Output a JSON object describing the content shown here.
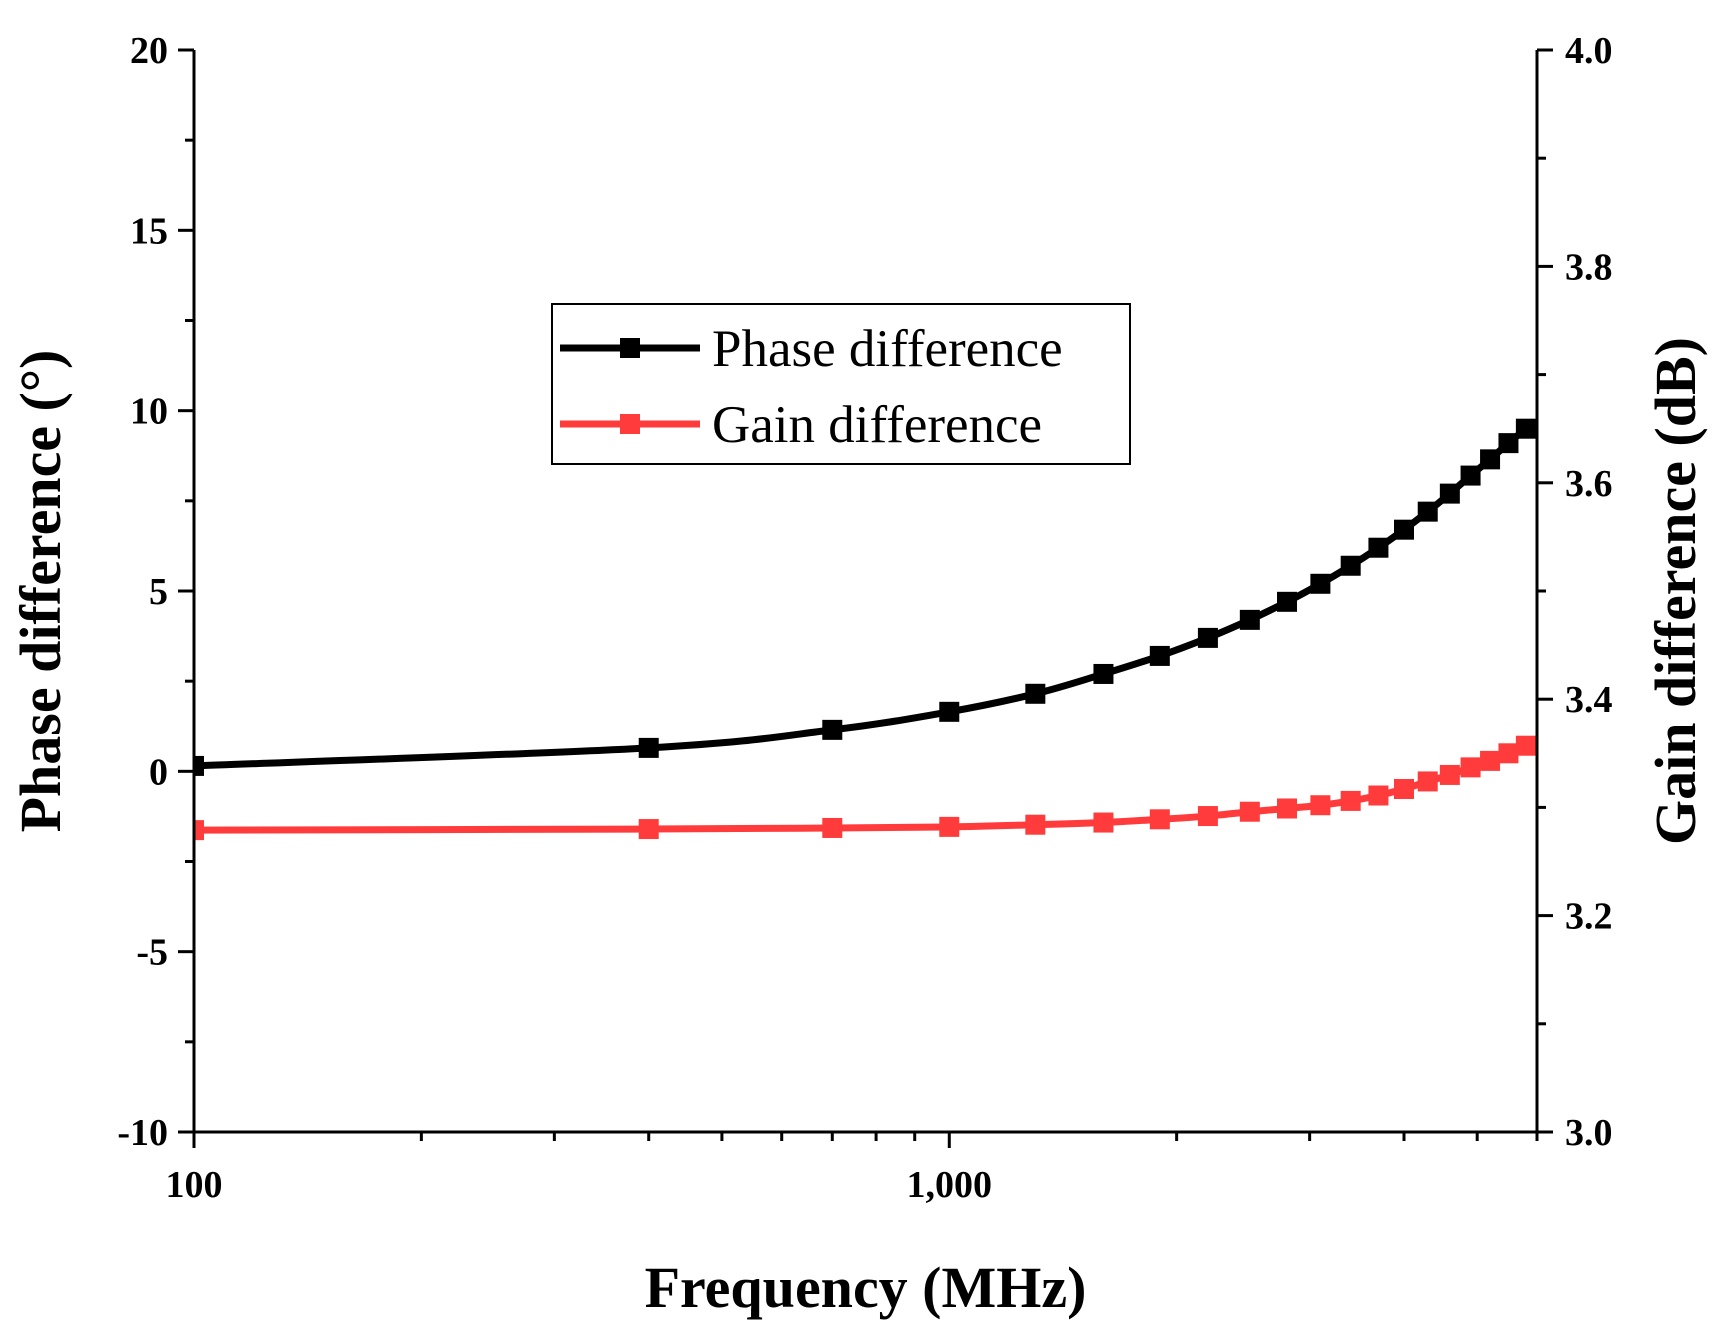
{
  "chart_data": {
    "type": "line",
    "xlabel": "Frequency (MHz)",
    "ylabel": "Phase difference (°)",
    "y2label": "Gain difference (dB)",
    "xscale": "log",
    "xlim": [
      100,
      6000
    ],
    "ylim": [
      -10,
      20
    ],
    "y2lim": [
      3.0,
      4.0
    ],
    "x_ticks": [
      100,
      1000
    ],
    "x_tick_labels": [
      "100",
      "1,000"
    ],
    "y_ticks": [
      -10,
      -5,
      0,
      5,
      10,
      15,
      20
    ],
    "y_tick_labels": [
      "-10",
      "-5",
      "0",
      "5",
      "10",
      "15",
      "20"
    ],
    "y2_ticks": [
      3.0,
      3.2,
      3.4,
      3.6,
      3.8,
      4.0
    ],
    "y2_tick_labels": [
      "3.0",
      "3.2",
      "3.4",
      "3.6",
      "3.8",
      "4.0"
    ],
    "grid": false,
    "legend_position": "upper-center",
    "x": [
      100,
      400,
      700,
      1000,
      1300,
      1600,
      1900,
      2200,
      2500,
      2800,
      3100,
      3400,
      3700,
      4000,
      4300,
      4600,
      4900,
      5200,
      5500,
      5800
    ],
    "series": [
      {
        "name": "Phase difference",
        "axis": "left",
        "color": "#000000",
        "marker": "square",
        "values": [
          0.15,
          0.65,
          1.15,
          1.65,
          2.15,
          2.7,
          3.2,
          3.7,
          4.2,
          4.7,
          5.2,
          5.7,
          6.2,
          6.7,
          7.2,
          7.7,
          8.2,
          8.65,
          9.1,
          9.5
        ]
      },
      {
        "name": "Gain difference",
        "axis": "right",
        "color": "#ff3b3b",
        "marker": "square",
        "values": [
          3.279,
          3.28,
          3.281,
          3.282,
          3.284,
          3.286,
          3.289,
          3.292,
          3.296,
          3.299,
          3.302,
          3.306,
          3.311,
          3.317,
          3.324,
          3.33,
          3.337,
          3.343,
          3.35,
          3.357
        ]
      }
    ]
  }
}
